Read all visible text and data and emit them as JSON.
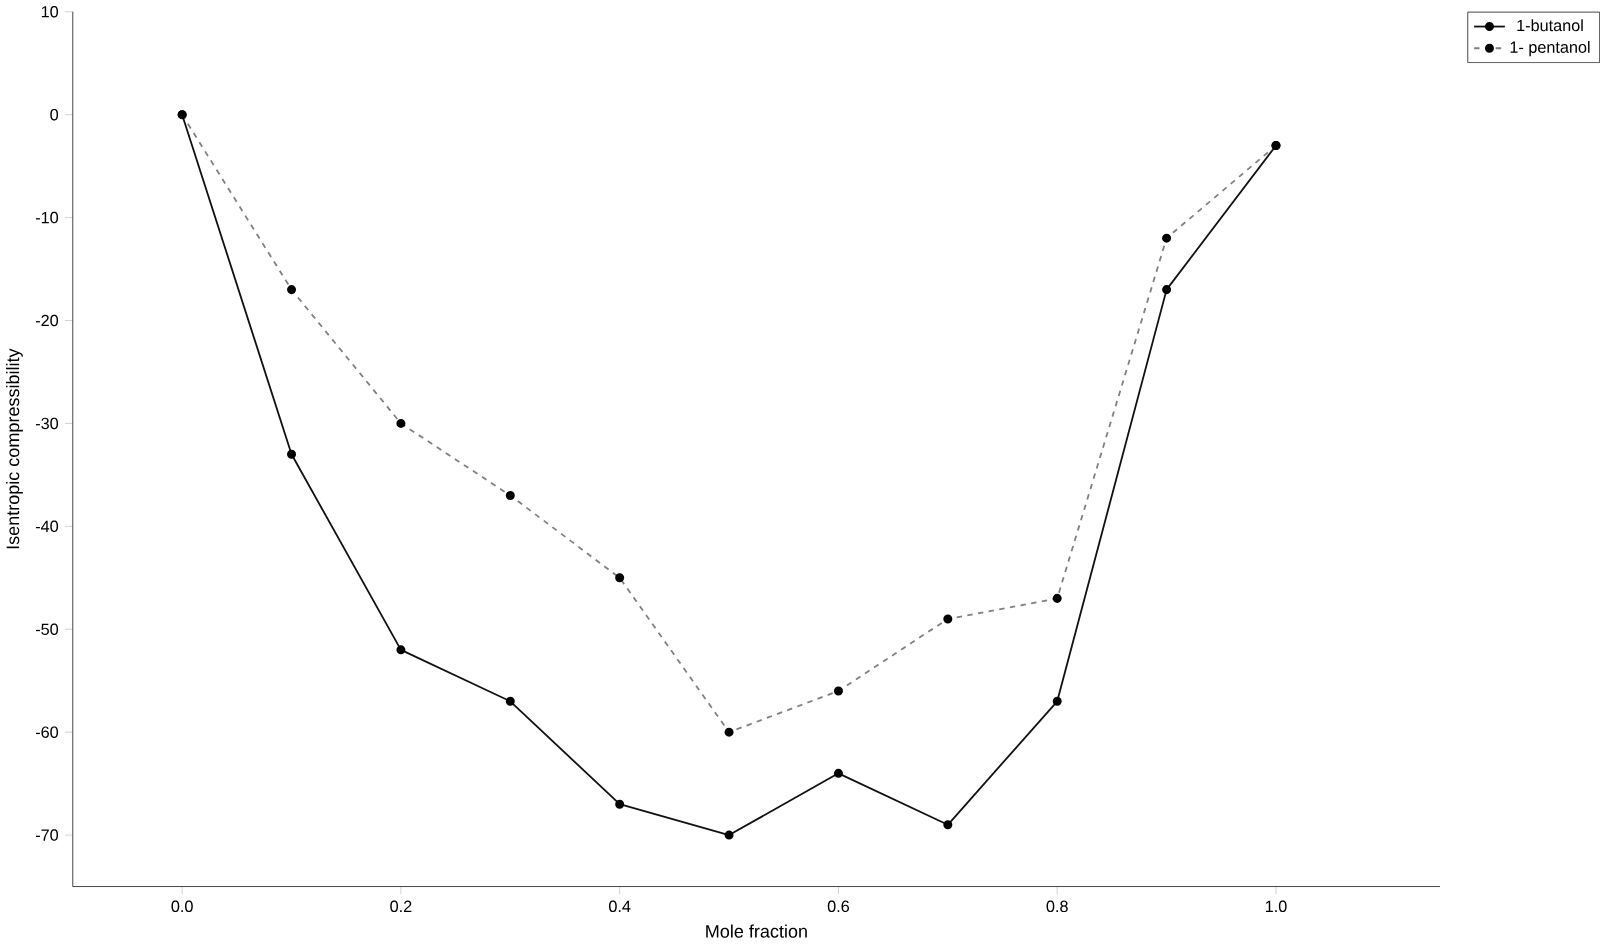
{
  "chart_data": {
    "type": "line",
    "xlabel": "Mole fraction",
    "ylabel": "Isentropic compressibility",
    "x": [
      0.0,
      0.1,
      0.2,
      0.3,
      0.4,
      0.5,
      0.6,
      0.7,
      0.8,
      0.9,
      1.0
    ],
    "series": [
      {
        "name": "1-butanol",
        "color": "#111111",
        "line_style": "solid",
        "values": [
          0,
          -33,
          -52,
          -57,
          -67,
          -70,
          -64,
          -69,
          -57,
          -17,
          -3
        ]
      },
      {
        "name": "1- pentanol",
        "color": "#808080",
        "line_style": "dashed",
        "values": [
          0,
          -17,
          -30,
          -37,
          -45,
          -60,
          -56,
          -49,
          -47,
          -12,
          -3
        ]
      }
    ],
    "xlim": [
      -0.1,
      1.15
    ],
    "ylim": [
      -75,
      10
    ],
    "xticks": [
      {
        "value": 0.0,
        "label": "0.0"
      },
      {
        "value": 0.2,
        "label": "0.2"
      },
      {
        "value": 0.4,
        "label": "0.4"
      },
      {
        "value": 0.6,
        "label": "0.6"
      },
      {
        "value": 0.8,
        "label": "0.8"
      },
      {
        "value": 1.0,
        "label": "1.0"
      }
    ],
    "yticks": [
      10,
      0,
      -10,
      -20,
      -30,
      -40,
      -50,
      -60,
      -70
    ],
    "marker": "circle",
    "legend": "top right",
    "grid": false
  }
}
